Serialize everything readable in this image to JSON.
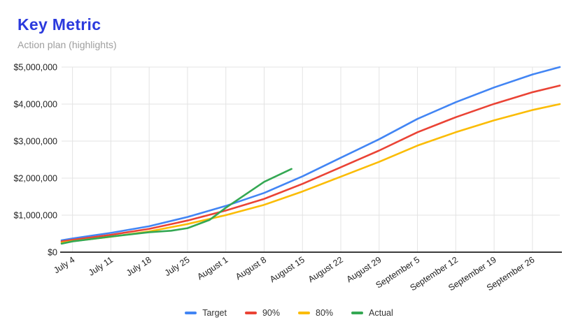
{
  "header": {
    "title": "Key Metric",
    "subtitle": "Action plan (highlights)"
  },
  "colors": {
    "title_text": "#2b3add",
    "subtitle_text": "#9e9e9e",
    "grid_line": "#e3e3e3",
    "axis_line": "#212121",
    "tick_text": "#1f1f1f",
    "legend_text": "#333333",
    "background": "#ffffff"
  },
  "chart_data": {
    "type": "line",
    "title": "Key Metric",
    "subtitle": "Action plan (highlights)",
    "grid": true,
    "legend_position": "bottom",
    "x_axis": {
      "domain_days": [
        0,
        91
      ],
      "tick_days": [
        2,
        9,
        16,
        23,
        30,
        37,
        44,
        51,
        58,
        65,
        72,
        79,
        86
      ],
      "tick_labels": [
        "July 4",
        "July 11",
        "July 18",
        "July 25",
        "August 1",
        "August 8",
        "August 15",
        "August 22",
        "August 29",
        "September 5",
        "September 12",
        "September 19",
        "September 26"
      ],
      "label_rotation_deg": -33
    },
    "y_axis": {
      "range": [
        0,
        5000000
      ],
      "tick_values": [
        0,
        1000000,
        2000000,
        3000000,
        4000000,
        5000000
      ],
      "tick_labels": [
        "$0",
        "$1,000,000",
        "$2,000,000",
        "$3,000,000",
        "$4,000,000",
        "$5,000,000"
      ]
    },
    "series": [
      {
        "name": "Target",
        "color": "#4285f4",
        "points": [
          [
            0,
            320000
          ],
          [
            2,
            370000
          ],
          [
            9,
            520000
          ],
          [
            16,
            700000
          ],
          [
            23,
            950000
          ],
          [
            30,
            1250000
          ],
          [
            37,
            1600000
          ],
          [
            44,
            2050000
          ],
          [
            51,
            2550000
          ],
          [
            58,
            3050000
          ],
          [
            65,
            3600000
          ],
          [
            72,
            4050000
          ],
          [
            79,
            4450000
          ],
          [
            86,
            4800000
          ],
          [
            91,
            5000000
          ]
        ]
      },
      {
        "name": "90%",
        "color": "#ea4335",
        "points": [
          [
            0,
            288000
          ],
          [
            2,
            333000
          ],
          [
            9,
            468000
          ],
          [
            16,
            630000
          ],
          [
            23,
            855000
          ],
          [
            30,
            1125000
          ],
          [
            37,
            1440000
          ],
          [
            44,
            1845000
          ],
          [
            51,
            2295000
          ],
          [
            58,
            2745000
          ],
          [
            65,
            3240000
          ],
          [
            72,
            3645000
          ],
          [
            79,
            4005000
          ],
          [
            86,
            4320000
          ],
          [
            91,
            4500000
          ]
        ]
      },
      {
        "name": "80%",
        "color": "#fbbc04",
        "points": [
          [
            0,
            256000
          ],
          [
            2,
            296000
          ],
          [
            9,
            416000
          ],
          [
            16,
            560000
          ],
          [
            23,
            760000
          ],
          [
            30,
            1000000
          ],
          [
            37,
            1280000
          ],
          [
            44,
            1640000
          ],
          [
            51,
            2040000
          ],
          [
            58,
            2440000
          ],
          [
            65,
            2880000
          ],
          [
            72,
            3240000
          ],
          [
            79,
            3560000
          ],
          [
            86,
            3840000
          ],
          [
            91,
            4000000
          ]
        ]
      },
      {
        "name": "Actual",
        "color": "#34a853",
        "points": [
          [
            0,
            230000
          ],
          [
            2,
            290000
          ],
          [
            9,
            420000
          ],
          [
            16,
            540000
          ],
          [
            20,
            580000
          ],
          [
            23,
            650000
          ],
          [
            27,
            870000
          ],
          [
            30,
            1200000
          ],
          [
            37,
            1900000
          ],
          [
            42,
            2250000
          ]
        ]
      }
    ]
  }
}
